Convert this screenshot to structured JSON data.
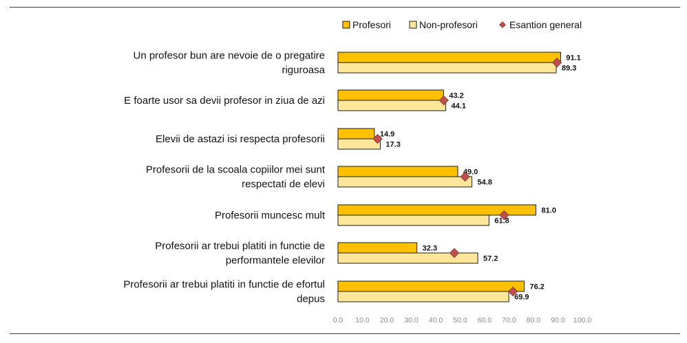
{
  "chart_data": {
    "type": "bar",
    "orientation": "horizontal",
    "categories": [
      [
        "Un profesor bun are nevoie de o pregatire",
        "riguroasa"
      ],
      [
        "E foarte usor sa devii profesor in ziua de azi"
      ],
      [
        "Elevii de astazi isi respecta profesorii"
      ],
      [
        "Profesorii de la scoala copiilor mei sunt",
        "respectati de elevi"
      ],
      [
        "Profesorii muncesc mult"
      ],
      [
        "Profesorii ar trebui platiti in functie de",
        "performantele elevilor"
      ],
      [
        "Profesorii ar trebui platiti in functie de efortul",
        "depus"
      ]
    ],
    "series": [
      {
        "name": "Profesori",
        "type": "bar",
        "color": "#FFC000",
        "values": [
          91.1,
          43.2,
          14.9,
          49.0,
          81.0,
          32.3,
          76.2
        ]
      },
      {
        "name": "Non-profesori",
        "type": "bar",
        "color": "#FFE699",
        "values": [
          89.3,
          44.1,
          17.3,
          54.8,
          61.8,
          57.2,
          69.9
        ]
      },
      {
        "name": "Esantion general",
        "type": "marker",
        "marker": "diamond",
        "color": "#C0504D",
        "values": [
          89.6,
          43.3,
          16.2,
          52.0,
          68.0,
          47.6,
          71.6
        ]
      }
    ],
    "xlim": [
      0,
      100
    ],
    "xticks": [
      "0.0",
      "10.0",
      "20.0",
      "30.0",
      "40.0",
      "50.0",
      "60.0",
      "70.0",
      "80.0",
      "90.0",
      "100.0"
    ],
    "xlabel": "",
    "ylabel": "",
    "grid": false,
    "legend_position": "top"
  }
}
